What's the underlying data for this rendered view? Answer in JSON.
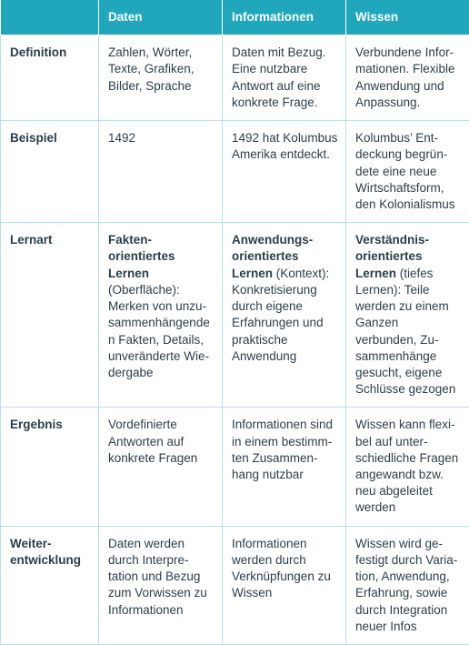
{
  "table": {
    "colors": {
      "header_bg": "#21a7bb",
      "header_fg": "#ffffff",
      "border": "#b9e0e6",
      "text": "#2a3f4a",
      "body_bg": "#ffffff"
    },
    "columns": [
      "",
      "Daten",
      "Informationen",
      "Wissen"
    ],
    "rows": [
      {
        "label": "Definition",
        "daten": "Zahlen, Wörter, Texte, Grafiken, Bilder, Sprache",
        "info": "Daten mit Bezug. Eine nutzbare Antwort auf eine konkrete Frage.",
        "wissen": "Verbundene Infor­mationen. Flexible Anwendung und Anpassung."
      },
      {
        "label": "Beispiel",
        "daten": "1492",
        "info": "1492 hat Kolumbus Amerika entdeckt.",
        "wissen": "Kolumbus’ Ent­deckung begrün­dete eine neue Wirtschaftsform, den Kolonialismus"
      },
      {
        "label": "Lernart",
        "daten_bold": "Fakten­orientiertes Lernen",
        "daten_rest": " (Oberfläche): Merken von unzu­sammenhängenden Fakten, Details, unveränderte Wie­dergabe",
        "info_bold": "Anwendungs­orientiertes Lernen",
        "info_rest": " (Kontext): Konkretisierung durch eigene Erfah­rungen und prak­tische Anwendung",
        "wissen_bold": "Verständnis­orientiertes Lernen",
        "wissen_rest": " (tiefes Lernen): Teile werden zu einem Ganzen verbunden, Zu­sammenhänge gesucht, eigene Schlüsse gezogen"
      },
      {
        "label": "Ergebnis",
        "daten": "Vordefinierte Antworten auf konkrete Fragen",
        "info": "Informationen sind in einem bestimm­ten Zusammen­hang nutzbar",
        "wissen": "Wissen kann flexi­bel auf unter­schiedliche Fragen angewandt bzw. neu abgeleitet werden"
      },
      {
        "label": "Weiter­entwicklung",
        "daten": "Daten werden durch Interpre­tation und Bezug zum Vorwissen zu Informationen",
        "info": "Informationen werden durch Verknüpfungen zu Wissen",
        "wissen": "Wissen wird ge­festigt durch Varia­tion, Anwendung, Erfahrung, sowie durch Integration neuer Infos"
      }
    ]
  }
}
